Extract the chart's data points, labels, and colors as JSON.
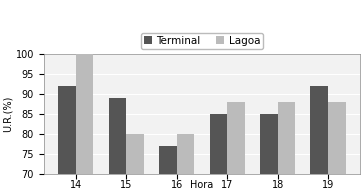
{
  "categories": [
    14,
    15,
    16,
    17,
    18,
    19
  ],
  "terminal": [
    92,
    89,
    77,
    85,
    85,
    92
  ],
  "lagoa": [
    100,
    80,
    80,
    88,
    88,
    88
  ],
  "terminal_color": "#555555",
  "lagoa_color": "#bbbbbb",
  "ylabel": "U.R.(%)",
  "xlabel": "Hora",
  "ylim": [
    70,
    100
  ],
  "yticks": [
    70,
    75,
    80,
    85,
    90,
    95,
    100
  ],
  "legend_labels": [
    "Terminal",
    "Lagoa"
  ],
  "bar_width": 0.35,
  "bg_color": "#f2f2f2",
  "fig_color": "#ffffff",
  "grid_color": "#ffffff"
}
